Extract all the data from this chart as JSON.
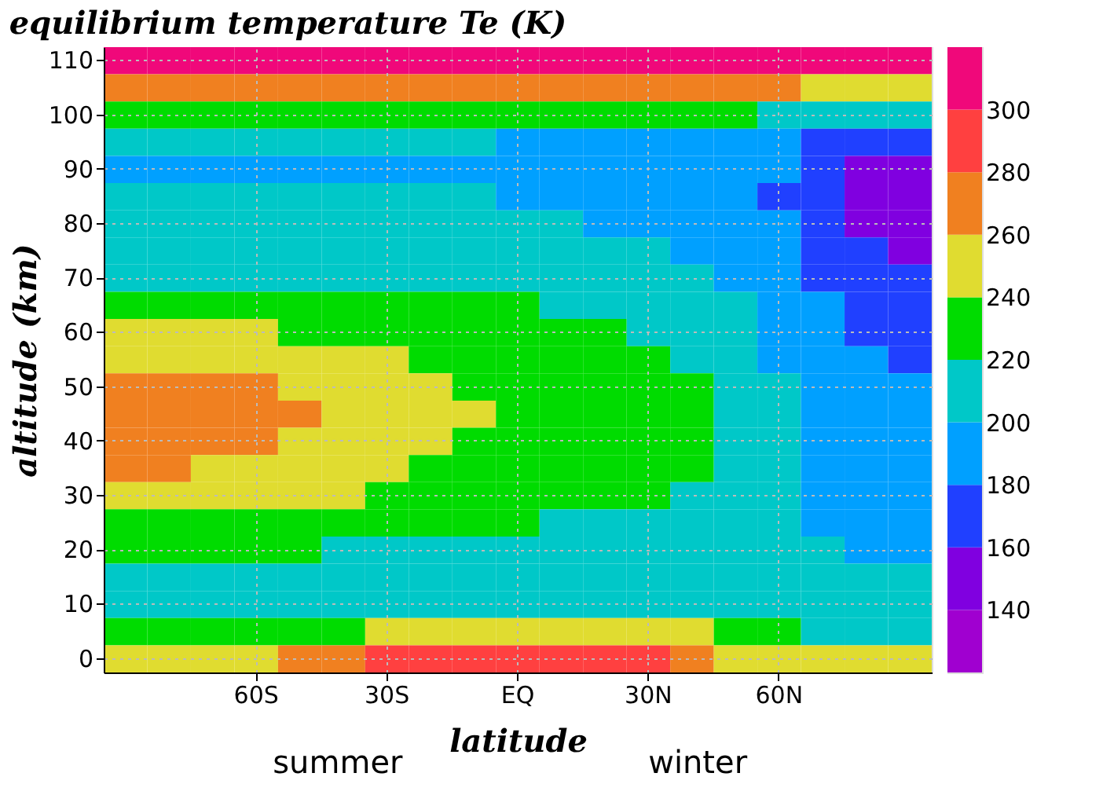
{
  "chart_data": {
    "type": "heatmap",
    "title": "equilibrium temperature Te (K)",
    "xlabel": "latitude",
    "ylabel": "altitude (km)",
    "annotations": [
      "summer",
      "winter"
    ],
    "categories": [
      null,
      null,
      null,
      "60S",
      null,
      null,
      "30S",
      null,
      null,
      "EQ",
      null,
      null,
      "30N",
      null,
      null,
      "60N",
      null,
      null,
      null
    ],
    "y_categories": [
      "110",
      null,
      "100",
      null,
      "90",
      null,
      "80",
      null,
      "70",
      null,
      "60",
      null,
      "50",
      null,
      "40",
      null,
      "30",
      null,
      "20",
      null,
      "10",
      null,
      "0"
    ],
    "cells": [
      [
        310,
        310,
        310,
        310,
        310,
        310,
        310,
        310,
        310,
        310,
        310,
        310,
        310,
        310,
        310,
        310,
        310,
        310,
        310
      ],
      [
        270,
        270,
        270,
        270,
        270,
        270,
        270,
        270,
        270,
        270,
        270,
        270,
        270,
        270,
        270,
        270,
        250,
        250,
        250
      ],
      [
        230,
        230,
        230,
        230,
        230,
        230,
        230,
        230,
        230,
        230,
        230,
        230,
        230,
        230,
        230,
        210,
        210,
        210,
        210
      ],
      [
        210,
        210,
        210,
        210,
        210,
        210,
        210,
        210,
        210,
        190,
        190,
        190,
        190,
        190,
        190,
        190,
        170,
        170,
        170
      ],
      [
        190,
        190,
        190,
        190,
        190,
        190,
        190,
        190,
        190,
        190,
        190,
        190,
        190,
        190,
        190,
        190,
        170,
        150,
        150
      ],
      [
        210,
        210,
        210,
        210,
        210,
        210,
        210,
        210,
        210,
        190,
        190,
        190,
        190,
        190,
        190,
        170,
        170,
        150,
        150
      ],
      [
        210,
        210,
        210,
        210,
        210,
        210,
        210,
        210,
        210,
        210,
        210,
        190,
        190,
        190,
        190,
        190,
        170,
        150,
        150
      ],
      [
        210,
        210,
        210,
        210,
        210,
        210,
        210,
        210,
        210,
        210,
        210,
        210,
        210,
        190,
        190,
        190,
        170,
        170,
        150
      ],
      [
        210,
        210,
        210,
        210,
        210,
        210,
        210,
        210,
        210,
        210,
        210,
        210,
        210,
        210,
        190,
        190,
        170,
        170,
        170
      ],
      [
        230,
        230,
        230,
        230,
        230,
        230,
        230,
        230,
        230,
        230,
        210,
        210,
        210,
        210,
        210,
        190,
        190,
        170,
        170
      ],
      [
        250,
        250,
        250,
        250,
        230,
        230,
        230,
        230,
        230,
        230,
        230,
        230,
        210,
        210,
        210,
        190,
        190,
        170,
        170
      ],
      [
        250,
        250,
        250,
        250,
        250,
        250,
        250,
        230,
        230,
        230,
        230,
        230,
        230,
        210,
        210,
        190,
        190,
        190,
        170
      ],
      [
        270,
        270,
        270,
        270,
        250,
        250,
        250,
        250,
        230,
        230,
        230,
        230,
        230,
        230,
        210,
        210,
        190,
        190,
        190
      ],
      [
        270,
        270,
        270,
        270,
        270,
        250,
        250,
        250,
        250,
        230,
        230,
        230,
        230,
        230,
        210,
        210,
        190,
        190,
        190
      ],
      [
        270,
        270,
        270,
        270,
        250,
        250,
        250,
        250,
        230,
        230,
        230,
        230,
        230,
        230,
        210,
        210,
        190,
        190,
        190
      ],
      [
        270,
        270,
        250,
        250,
        250,
        250,
        250,
        230,
        230,
        230,
        230,
        230,
        230,
        230,
        210,
        210,
        190,
        190,
        190
      ],
      [
        250,
        250,
        250,
        250,
        250,
        250,
        230,
        230,
        230,
        230,
        230,
        230,
        230,
        210,
        210,
        210,
        190,
        190,
        190
      ],
      [
        230,
        230,
        230,
        230,
        230,
        230,
        230,
        230,
        230,
        230,
        210,
        210,
        210,
        210,
        210,
        210,
        190,
        190,
        190
      ],
      [
        230,
        230,
        230,
        230,
        230,
        210,
        210,
        210,
        210,
        210,
        210,
        210,
        210,
        210,
        210,
        210,
        210,
        190,
        190
      ],
      [
        210,
        210,
        210,
        210,
        210,
        210,
        210,
        210,
        210,
        210,
        210,
        210,
        210,
        210,
        210,
        210,
        210,
        210,
        210
      ],
      [
        210,
        210,
        210,
        210,
        210,
        210,
        210,
        210,
        210,
        210,
        210,
        210,
        210,
        210,
        210,
        210,
        210,
        210,
        210
      ],
      [
        230,
        230,
        230,
        230,
        230,
        230,
        250,
        250,
        250,
        250,
        250,
        250,
        250,
        250,
        230,
        230,
        210,
        210,
        210
      ],
      [
        250,
        250,
        250,
        250,
        270,
        270,
        290,
        290,
        290,
        290,
        290,
        290,
        290,
        270,
        250,
        250,
        250,
        250,
        250
      ]
    ],
    "clim": [
      120,
      320
    ],
    "cticks": [
      140,
      160,
      180,
      200,
      220,
      240,
      260,
      280,
      300
    ],
    "colors": [
      "#a000d0",
      "#8000e0",
      "#2040ff",
      "#00a0ff",
      "#00c8c8",
      "#00dc00",
      "#e0dc30",
      "#f08020",
      "#ff4040",
      "#f0087a"
    ],
    "grid": true
  }
}
